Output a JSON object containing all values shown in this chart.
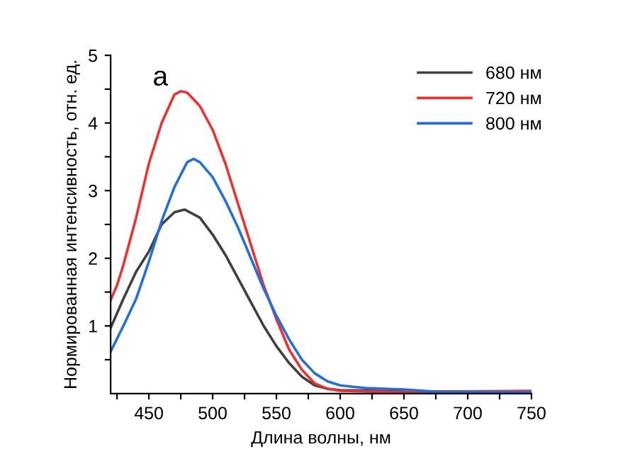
{
  "chart_data": {
    "type": "line",
    "xlabel": "Длина волны, нм",
    "ylabel": "Нормированная интенсивность, отн. ед.",
    "annotations": [
      "а"
    ],
    "legend": "top right",
    "grid": false,
    "xlim": [
      420,
      750
    ],
    "ylim": [
      0,
      5
    ],
    "xticks": [
      450,
      500,
      550,
      600,
      650,
      700,
      750,
      {
        "value": 425,
        "label": null
      },
      {
        "value": 475,
        "label": null
      },
      {
        "value": 525,
        "label": null
      },
      {
        "value": 575,
        "label": null
      },
      {
        "value": 625,
        "label": null
      },
      {
        "value": 675,
        "label": null
      },
      {
        "value": 725,
        "label": null
      }
    ],
    "yticks": [
      1,
      2,
      3,
      4,
      5,
      {
        "value": 0.5,
        "label": null
      },
      {
        "value": 1.5,
        "label": null
      },
      {
        "value": 2.5,
        "label": null
      },
      {
        "value": 3.5,
        "label": null
      },
      {
        "value": 4.5,
        "label": null
      }
    ],
    "series": [
      {
        "name": "680 нм",
        "color": "#404040",
        "x": [
          420,
          430,
          440,
          450,
          460,
          470,
          478,
          490,
          500,
          510,
          520,
          530,
          540,
          550,
          560,
          570,
          580,
          590,
          600,
          650,
          700,
          750
        ],
        "values": [
          0.97,
          1.4,
          1.8,
          2.1,
          2.5,
          2.68,
          2.72,
          2.6,
          2.35,
          2.05,
          1.7,
          1.35,
          1.0,
          0.7,
          0.45,
          0.25,
          0.12,
          0.07,
          0.05,
          0.03,
          0.03,
          0.03
        ]
      },
      {
        "name": "720 нм",
        "color": "#f03030",
        "x": [
          420,
          425,
          430,
          440,
          450,
          460,
          470,
          475,
          480,
          485,
          490,
          500,
          510,
          520,
          530,
          540,
          550,
          560,
          570,
          580,
          590,
          600,
          620,
          650,
          700,
          750
        ],
        "values": [
          1.38,
          1.6,
          1.9,
          2.6,
          3.4,
          4.0,
          4.42,
          4.47,
          4.45,
          4.35,
          4.25,
          3.9,
          3.4,
          2.8,
          2.2,
          1.6,
          1.1,
          0.65,
          0.35,
          0.15,
          0.07,
          0.04,
          0.03,
          0.02,
          0.03,
          0.04
        ]
      },
      {
        "name": "800 нм",
        "color": "#1f6fe0",
        "x": [
          420,
          430,
          440,
          450,
          460,
          470,
          480,
          485,
          490,
          500,
          510,
          520,
          530,
          540,
          550,
          560,
          570,
          580,
          590,
          600,
          620,
          650,
          680,
          700,
          750
        ],
        "values": [
          0.62,
          1.0,
          1.4,
          1.95,
          2.55,
          3.05,
          3.42,
          3.47,
          3.42,
          3.2,
          2.85,
          2.45,
          2.0,
          1.55,
          1.15,
          0.8,
          0.5,
          0.3,
          0.18,
          0.12,
          0.08,
          0.06,
          0.02,
          0.02,
          0.02
        ]
      }
    ]
  }
}
